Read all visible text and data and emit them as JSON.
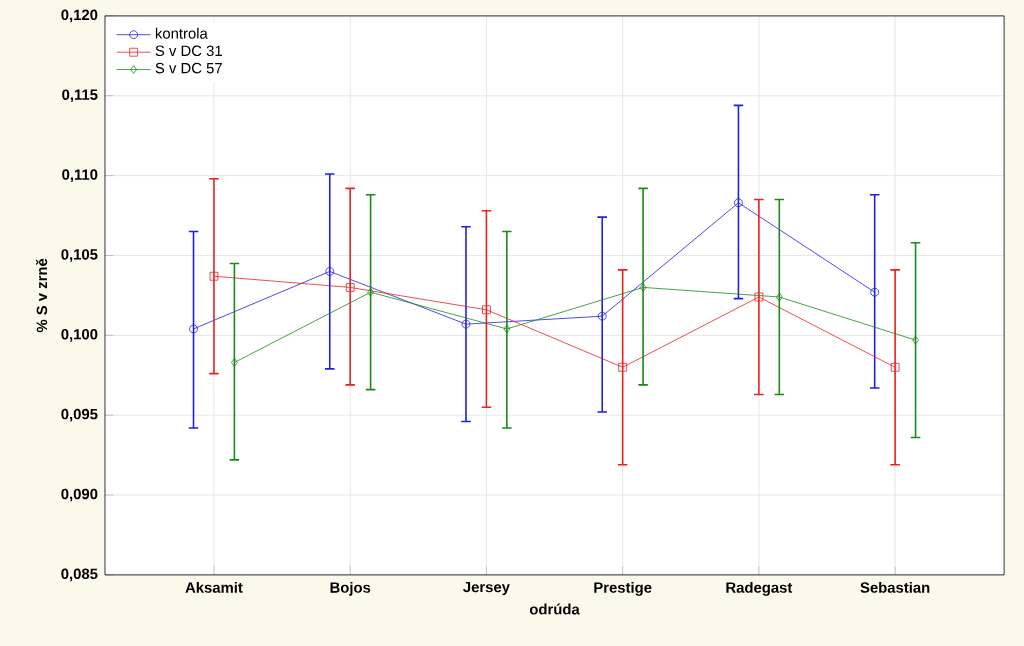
{
  "chart_data": {
    "type": "line",
    "xlabel": "odrúda",
    "ylabel": "% S v zrně",
    "categories": [
      "Aksamit",
      "Bojos",
      "Jersey",
      "Prestige",
      "Radegast",
      "Sebastian"
    ],
    "series": [
      {
        "name": "kontrola",
        "color": "#1f1fe0",
        "marker": "circle",
        "values": [
          0.1004,
          0.104,
          0.1007,
          0.1012,
          0.1083,
          0.1027
        ],
        "errors": [
          [
            0.0942,
            0.1065
          ],
          [
            0.0979,
            0.1101
          ],
          [
            0.0946,
            0.1068
          ],
          [
            0.0952,
            0.1074
          ],
          [
            0.1023,
            0.1144
          ],
          [
            0.0967,
            0.1088
          ]
        ]
      },
      {
        "name": "S v DC 31",
        "color": "#e82020",
        "marker": "square",
        "values": [
          0.1037,
          0.103,
          0.1016,
          0.098,
          0.1024,
          0.098
        ],
        "errors": [
          [
            0.0976,
            0.1098
          ],
          [
            0.0969,
            0.1092
          ],
          [
            0.0955,
            0.1078
          ],
          [
            0.0919,
            0.1041
          ],
          [
            0.0963,
            0.1085
          ],
          [
            0.0919,
            0.1041
          ]
        ]
      },
      {
        "name": "S v DC 57",
        "color": "#178a17",
        "marker": "diamond",
        "values": [
          0.0983,
          0.1027,
          0.1004,
          0.103,
          0.1024,
          0.0997
        ],
        "errors": [
          [
            0.0922,
            0.1045
          ],
          [
            0.0966,
            0.1088
          ],
          [
            0.0942,
            0.1065
          ],
          [
            0.0969,
            0.1092
          ],
          [
            0.0963,
            0.1085
          ],
          [
            0.0936,
            0.1058
          ]
        ]
      }
    ],
    "ylim": [
      0.085,
      0.12
    ],
    "yticks": [
      {
        "value": 0.085,
        "label": "0,085"
      },
      {
        "value": 0.09,
        "label": "0,090"
      },
      {
        "value": 0.095,
        "label": "0,095"
      },
      {
        "value": 0.1,
        "label": "0,100"
      },
      {
        "value": 0.105,
        "label": "0,105"
      },
      {
        "value": 0.11,
        "label": "0,110"
      },
      {
        "value": 0.115,
        "label": "0,115"
      },
      {
        "value": 0.12,
        "label": "0,120"
      }
    ],
    "grid": true,
    "legend": "top left",
    "line_style": "solid"
  }
}
